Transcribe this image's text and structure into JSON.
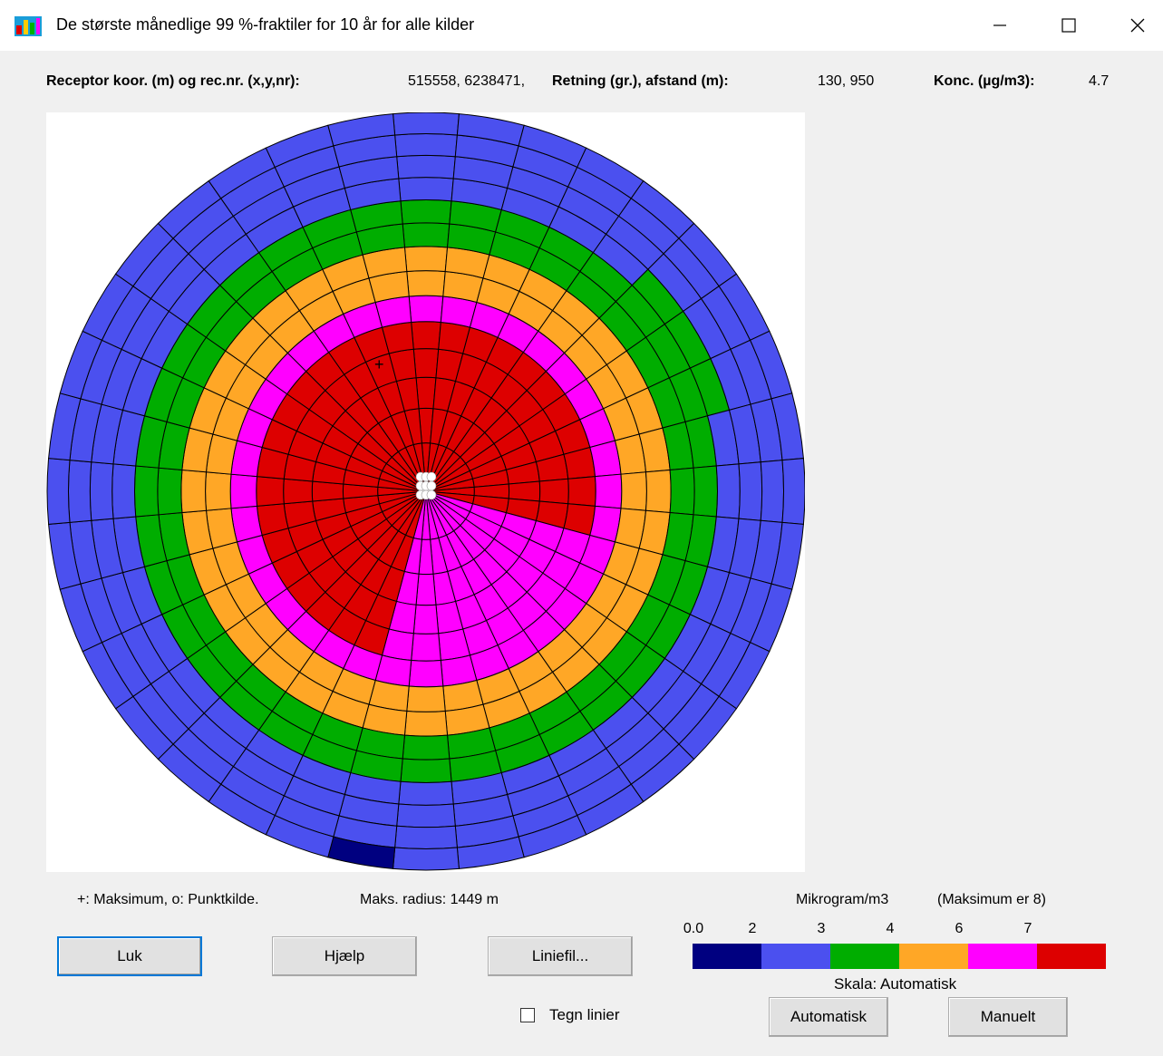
{
  "window": {
    "title": "De største månedlige 99 %-fraktiler for 10 år for alle kilder",
    "icon": "app-icon",
    "controls": [
      "minimize-icon",
      "maximize-icon",
      "close-icon"
    ]
  },
  "info": {
    "receptor_label": "Receptor koor. (m) og rec.nr. (x,y,nr):",
    "receptor_value": "515558, 6238471,",
    "direction_label": "Retning (gr.), afstand (m):",
    "direction_value": "130, 950",
    "conc_label": "Konc. (µg/m3):",
    "conc_value": "4.7"
  },
  "notes": {
    "legend_symbols": "+: Maksimum,  o: Punktkilde.",
    "max_radius": "Maks. radius:  1449 m"
  },
  "legend": {
    "unit": "Mikrogram/m3",
    "max_note": "(Maksimum er   8)",
    "ticks": [
      "0.0",
      "2",
      "3",
      "4",
      "6",
      "7"
    ],
    "colors": [
      "#000080",
      "#4b50ef",
      "#00ad00",
      "#ffa726",
      "#ff00ff",
      "#dd0000"
    ],
    "scale_text": "Skala:  Automatisk"
  },
  "buttons": {
    "close": "Luk",
    "help": "Hjælp",
    "linefile": "Liniefil...",
    "automatic": "Automatisk",
    "manual": "Manuelt"
  },
  "checkbox": {
    "label": "Tegn linier",
    "checked": false
  },
  "polar_plot": {
    "sectors": 36,
    "rings": 14,
    "outline_color": "#000000"
  }
}
